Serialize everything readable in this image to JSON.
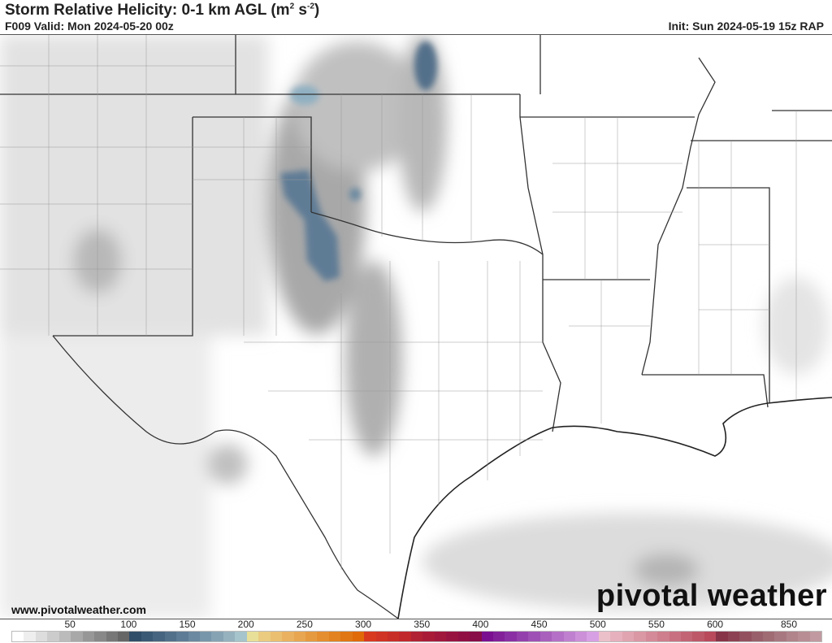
{
  "header": {
    "title": "Storm Relative Helicity: 0-1 km AGL (m",
    "title_sup1": "2",
    "title_mid": " s",
    "title_sup2": "-2",
    "title_end": ")",
    "valid": "F009 Valid: Mon 2024-05-20 00z",
    "init": "Init: Sun 2024-05-19 15z RAP"
  },
  "footer": {
    "url": "www.pivotalweather.com",
    "logo": "pivotal weather"
  },
  "colorbar": {
    "ticks": [
      {
        "label": "50",
        "v": 50
      },
      {
        "label": "100",
        "v": 100
      },
      {
        "label": "150",
        "v": 150
      },
      {
        "label": "200",
        "v": 200
      },
      {
        "label": "250",
        "v": 250
      },
      {
        "label": "300",
        "v": 300
      },
      {
        "label": "350",
        "v": 350
      },
      {
        "label": "400",
        "v": 400
      },
      {
        "label": "450",
        "v": 450
      },
      {
        "label": "500",
        "v": 500
      },
      {
        "label": "550",
        "v": 550
      },
      {
        "label": "600",
        "v": 600
      },
      {
        "label": "850",
        "v": 850
      }
    ],
    "colors": [
      "#ffffff",
      "#eeeeee",
      "#dddddd",
      "#cccccc",
      "#bbbbbb",
      "#a8a8a8",
      "#979797",
      "#888888",
      "#777777",
      "#666666",
      "#2f4d68",
      "#3a5974",
      "#46647f",
      "#52708a",
      "#5e7c95",
      "#6b89a0",
      "#7896aa",
      "#86a3b4",
      "#95b2be",
      "#a6c4cc",
      "#e8e098",
      "#eacb80",
      "#ebbf70",
      "#eab260",
      "#e8a650",
      "#e69a40",
      "#e48e30",
      "#e28220",
      "#e07614",
      "#e06a08",
      "#d83a20",
      "#d03424",
      "#c82e28",
      "#c0282c",
      "#b02234",
      "#a81c38",
      "#a0183c",
      "#981440",
      "#901044",
      "#880c48",
      "#7a1090",
      "#82209a",
      "#8a30a4",
      "#9440ac",
      "#9e50b4",
      "#a860bc",
      "#b470c6",
      "#c080d0",
      "#cc90d8",
      "#d8a0e4",
      "#ecc0c8",
      "#e6b0bc",
      "#e0a4b0",
      "#da98a4",
      "#d48a98",
      "#ce7e8c",
      "#c87080",
      "#c26474",
      "#bc5868",
      "#b84a5c",
      "#883448",
      "#8c4252",
      "#92505e",
      "#98606a",
      "#a06c74",
      "#a87880",
      "#b0848a",
      "#b88e94",
      "#c09aa0"
    ]
  }
}
